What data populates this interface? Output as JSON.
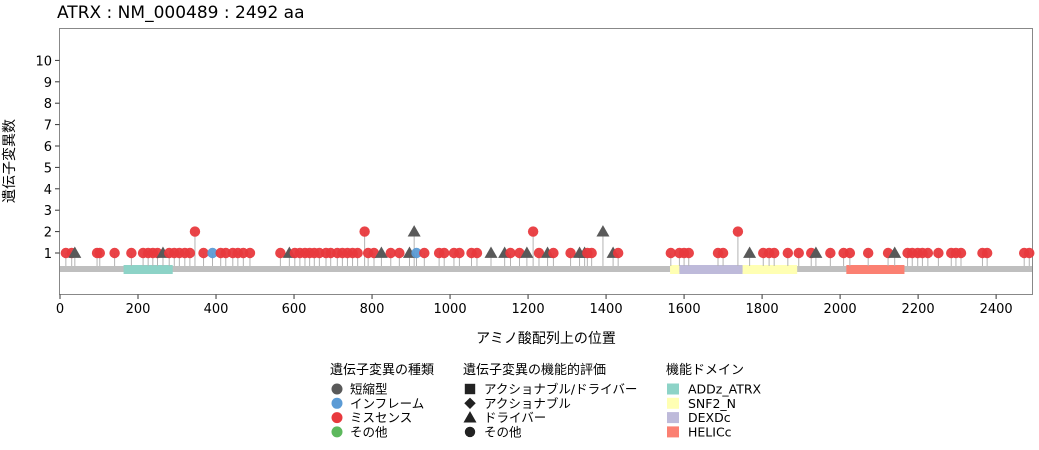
{
  "chart_data": {
    "type": "lollipop",
    "title": "ATRX : NM_000489 : 2492 aa",
    "xlabel": "アミノ酸配列上の位置",
    "ylabel": "遺伝子変異数",
    "xlim": [
      0,
      2492
    ],
    "ylim": [
      0,
      11
    ],
    "x_ticks": [
      0,
      200,
      400,
      600,
      800,
      1000,
      1200,
      1400,
      1600,
      1800,
      2000,
      2200,
      2400
    ],
    "y_ticks": [
      1,
      2,
      3,
      4,
      5,
      6,
      7,
      8,
      9,
      10
    ],
    "protein_length": 2492,
    "domains": [
      {
        "name": "ADDz_ATRX",
        "start": 163,
        "end": 289,
        "color": "#8dd3c7"
      },
      {
        "name": "SNF2_N",
        "start": 1564,
        "end": 1588,
        "color": "#ffffb3"
      },
      {
        "name": "DEXDc",
        "start": 1588,
        "end": 1750,
        "color": "#bebada"
      },
      {
        "name": "SNF2_N",
        "start": 1750,
        "end": 1890,
        "color": "#ffffb3"
      },
      {
        "name": "HELICc",
        "start": 2016,
        "end": 2165,
        "color": "#fb8072"
      }
    ],
    "mutations": [
      {
        "pos": 15,
        "count": 1,
        "type": "missense",
        "evaluation": "other"
      },
      {
        "pos": 30,
        "count": 1,
        "type": "missense",
        "evaluation": "other"
      },
      {
        "pos": 38,
        "count": 1,
        "type": "truncating",
        "evaluation": "driver"
      },
      {
        "pos": 95,
        "count": 1,
        "type": "missense",
        "evaluation": "other"
      },
      {
        "pos": 102,
        "count": 1,
        "type": "missense",
        "evaluation": "other"
      },
      {
        "pos": 140,
        "count": 1,
        "type": "missense",
        "evaluation": "other"
      },
      {
        "pos": 183,
        "count": 1,
        "type": "missense",
        "evaluation": "other"
      },
      {
        "pos": 213,
        "count": 1,
        "type": "missense",
        "evaluation": "other"
      },
      {
        "pos": 226,
        "count": 1,
        "type": "missense",
        "evaluation": "other"
      },
      {
        "pos": 238,
        "count": 1,
        "type": "missense",
        "evaluation": "other"
      },
      {
        "pos": 250,
        "count": 1,
        "type": "missense",
        "evaluation": "other"
      },
      {
        "pos": 264,
        "count": 1,
        "type": "truncating",
        "evaluation": "driver"
      },
      {
        "pos": 280,
        "count": 1,
        "type": "missense",
        "evaluation": "other"
      },
      {
        "pos": 293,
        "count": 1,
        "type": "missense",
        "evaluation": "other"
      },
      {
        "pos": 306,
        "count": 1,
        "type": "missense",
        "evaluation": "other"
      },
      {
        "pos": 320,
        "count": 1,
        "type": "missense",
        "evaluation": "other"
      },
      {
        "pos": 333,
        "count": 1,
        "type": "missense",
        "evaluation": "other"
      },
      {
        "pos": 346,
        "count": 2,
        "type": "missense",
        "evaluation": "other"
      },
      {
        "pos": 368,
        "count": 1,
        "type": "missense",
        "evaluation": "other"
      },
      {
        "pos": 391,
        "count": 1,
        "type": "inframe",
        "evaluation": "other"
      },
      {
        "pos": 412,
        "count": 1,
        "type": "missense",
        "evaluation": "other"
      },
      {
        "pos": 425,
        "count": 1,
        "type": "missense",
        "evaluation": "other"
      },
      {
        "pos": 443,
        "count": 1,
        "type": "missense",
        "evaluation": "other"
      },
      {
        "pos": 456,
        "count": 1,
        "type": "missense",
        "evaluation": "other"
      },
      {
        "pos": 470,
        "count": 1,
        "type": "missense",
        "evaluation": "other"
      },
      {
        "pos": 487,
        "count": 1,
        "type": "missense",
        "evaluation": "other"
      },
      {
        "pos": 565,
        "count": 1,
        "type": "missense",
        "evaluation": "other"
      },
      {
        "pos": 588,
        "count": 1,
        "type": "truncating",
        "evaluation": "driver"
      },
      {
        "pos": 602,
        "count": 1,
        "type": "missense",
        "evaluation": "other"
      },
      {
        "pos": 615,
        "count": 1,
        "type": "missense",
        "evaluation": "other"
      },
      {
        "pos": 628,
        "count": 1,
        "type": "missense",
        "evaluation": "other"
      },
      {
        "pos": 640,
        "count": 1,
        "type": "missense",
        "evaluation": "other"
      },
      {
        "pos": 652,
        "count": 1,
        "type": "missense",
        "evaluation": "other"
      },
      {
        "pos": 665,
        "count": 1,
        "type": "missense",
        "evaluation": "other"
      },
      {
        "pos": 682,
        "count": 1,
        "type": "missense",
        "evaluation": "other"
      },
      {
        "pos": 694,
        "count": 1,
        "type": "missense",
        "evaluation": "other"
      },
      {
        "pos": 711,
        "count": 1,
        "type": "missense",
        "evaluation": "other"
      },
      {
        "pos": 724,
        "count": 1,
        "type": "missense",
        "evaluation": "other"
      },
      {
        "pos": 737,
        "count": 1,
        "type": "missense",
        "evaluation": "other"
      },
      {
        "pos": 750,
        "count": 1,
        "type": "missense",
        "evaluation": "other"
      },
      {
        "pos": 763,
        "count": 1,
        "type": "missense",
        "evaluation": "other"
      },
      {
        "pos": 781,
        "count": 2,
        "type": "missense",
        "evaluation": "other"
      },
      {
        "pos": 790,
        "count": 1,
        "type": "missense",
        "evaluation": "other"
      },
      {
        "pos": 805,
        "count": 1,
        "type": "missense",
        "evaluation": "other"
      },
      {
        "pos": 824,
        "count": 1,
        "type": "truncating",
        "evaluation": "driver"
      },
      {
        "pos": 848,
        "count": 1,
        "type": "missense",
        "evaluation": "other"
      },
      {
        "pos": 870,
        "count": 1,
        "type": "missense",
        "evaluation": "other"
      },
      {
        "pos": 896,
        "count": 1,
        "type": "truncating",
        "evaluation": "driver"
      },
      {
        "pos": 908,
        "count": 2,
        "type": "truncating",
        "evaluation": "driver"
      },
      {
        "pos": 914,
        "count": 1,
        "type": "inframe",
        "evaluation": "other"
      },
      {
        "pos": 934,
        "count": 1,
        "type": "missense",
        "evaluation": "other"
      },
      {
        "pos": 972,
        "count": 1,
        "type": "missense",
        "evaluation": "other"
      },
      {
        "pos": 985,
        "count": 1,
        "type": "missense",
        "evaluation": "other"
      },
      {
        "pos": 1010,
        "count": 1,
        "type": "missense",
        "evaluation": "other"
      },
      {
        "pos": 1024,
        "count": 1,
        "type": "missense",
        "evaluation": "other"
      },
      {
        "pos": 1055,
        "count": 1,
        "type": "missense",
        "evaluation": "other"
      },
      {
        "pos": 1069,
        "count": 1,
        "type": "missense",
        "evaluation": "other"
      },
      {
        "pos": 1105,
        "count": 1,
        "type": "truncating",
        "evaluation": "driver"
      },
      {
        "pos": 1140,
        "count": 1,
        "type": "truncating",
        "evaluation": "driver"
      },
      {
        "pos": 1155,
        "count": 1,
        "type": "missense",
        "evaluation": "other"
      },
      {
        "pos": 1178,
        "count": 1,
        "type": "missense",
        "evaluation": "other"
      },
      {
        "pos": 1197,
        "count": 1,
        "type": "truncating",
        "evaluation": "driver"
      },
      {
        "pos": 1213,
        "count": 2,
        "type": "missense",
        "evaluation": "other"
      },
      {
        "pos": 1228,
        "count": 1,
        "type": "missense",
        "evaluation": "other"
      },
      {
        "pos": 1250,
        "count": 1,
        "type": "truncating",
        "evaluation": "driver"
      },
      {
        "pos": 1265,
        "count": 1,
        "type": "missense",
        "evaluation": "other"
      },
      {
        "pos": 1309,
        "count": 1,
        "type": "missense",
        "evaluation": "other"
      },
      {
        "pos": 1332,
        "count": 1,
        "type": "truncating",
        "evaluation": "driver"
      },
      {
        "pos": 1345,
        "count": 1,
        "type": "truncating",
        "evaluation": "driver"
      },
      {
        "pos": 1352,
        "count": 1,
        "type": "missense",
        "evaluation": "other"
      },
      {
        "pos": 1363,
        "count": 1,
        "type": "missense",
        "evaluation": "other"
      },
      {
        "pos": 1392,
        "count": 2,
        "type": "truncating",
        "evaluation": "driver"
      },
      {
        "pos": 1418,
        "count": 1,
        "type": "truncating",
        "evaluation": "driver"
      },
      {
        "pos": 1431,
        "count": 1,
        "type": "missense",
        "evaluation": "other"
      },
      {
        "pos": 1566,
        "count": 1,
        "type": "missense",
        "evaluation": "other"
      },
      {
        "pos": 1588,
        "count": 1,
        "type": "missense",
        "evaluation": "other"
      },
      {
        "pos": 1600,
        "count": 1,
        "type": "missense",
        "evaluation": "other"
      },
      {
        "pos": 1612,
        "count": 1,
        "type": "missense",
        "evaluation": "other"
      },
      {
        "pos": 1687,
        "count": 1,
        "type": "missense",
        "evaluation": "other"
      },
      {
        "pos": 1700,
        "count": 1,
        "type": "missense",
        "evaluation": "other"
      },
      {
        "pos": 1738,
        "count": 2,
        "type": "missense",
        "evaluation": "other"
      },
      {
        "pos": 1768,
        "count": 1,
        "type": "truncating",
        "evaluation": "driver"
      },
      {
        "pos": 1803,
        "count": 1,
        "type": "missense",
        "evaluation": "other"
      },
      {
        "pos": 1818,
        "count": 1,
        "type": "missense",
        "evaluation": "other"
      },
      {
        "pos": 1831,
        "count": 1,
        "type": "missense",
        "evaluation": "other"
      },
      {
        "pos": 1866,
        "count": 1,
        "type": "missense",
        "evaluation": "other"
      },
      {
        "pos": 1894,
        "count": 1,
        "type": "missense",
        "evaluation": "other"
      },
      {
        "pos": 1926,
        "count": 1,
        "type": "missense",
        "evaluation": "other"
      },
      {
        "pos": 1938,
        "count": 1,
        "type": "truncating",
        "evaluation": "driver"
      },
      {
        "pos": 1975,
        "count": 1,
        "type": "missense",
        "evaluation": "other"
      },
      {
        "pos": 2009,
        "count": 1,
        "type": "missense",
        "evaluation": "other"
      },
      {
        "pos": 2025,
        "count": 1,
        "type": "missense",
        "evaluation": "other"
      },
      {
        "pos": 2072,
        "count": 1,
        "type": "missense",
        "evaluation": "other"
      },
      {
        "pos": 2123,
        "count": 1,
        "type": "missense",
        "evaluation": "other"
      },
      {
        "pos": 2140,
        "count": 1,
        "type": "truncating",
        "evaluation": "driver"
      },
      {
        "pos": 2173,
        "count": 1,
        "type": "missense",
        "evaluation": "other"
      },
      {
        "pos": 2185,
        "count": 1,
        "type": "missense",
        "evaluation": "other"
      },
      {
        "pos": 2199,
        "count": 1,
        "type": "missense",
        "evaluation": "other"
      },
      {
        "pos": 2211,
        "count": 1,
        "type": "missense",
        "evaluation": "other"
      },
      {
        "pos": 2225,
        "count": 1,
        "type": "missense",
        "evaluation": "other"
      },
      {
        "pos": 2252,
        "count": 1,
        "type": "missense",
        "evaluation": "other"
      },
      {
        "pos": 2285,
        "count": 1,
        "type": "missense",
        "evaluation": "other"
      },
      {
        "pos": 2297,
        "count": 1,
        "type": "missense",
        "evaluation": "other"
      },
      {
        "pos": 2310,
        "count": 1,
        "type": "missense",
        "evaluation": "other"
      },
      {
        "pos": 2365,
        "count": 1,
        "type": "missense",
        "evaluation": "other"
      },
      {
        "pos": 2377,
        "count": 1,
        "type": "missense",
        "evaluation": "other"
      },
      {
        "pos": 2472,
        "count": 1,
        "type": "missense",
        "evaluation": "other"
      },
      {
        "pos": 2485,
        "count": 1,
        "type": "missense",
        "evaluation": "other"
      }
    ],
    "legends": {
      "mutation_type": {
        "title": "遺伝子変異の種類",
        "items": [
          {
            "key": "truncating",
            "label": "短縮型",
            "color": "#595959"
          },
          {
            "key": "inframe",
            "label": "インフレーム",
            "color": "#5b9bd5"
          },
          {
            "key": "missense",
            "label": "ミスセンス",
            "color": "#e8393d"
          },
          {
            "key": "other",
            "label": "その他",
            "color": "#5cb85c"
          }
        ]
      },
      "evaluation": {
        "title": "遺伝子変異の機能的評価",
        "items": [
          {
            "key": "actionable_driver",
            "label": "アクショナブル/ドライバー",
            "shape": "square"
          },
          {
            "key": "actionable",
            "label": "アクショナブル",
            "shape": "diamond"
          },
          {
            "key": "driver",
            "label": "ドライバー",
            "shape": "triangle"
          },
          {
            "key": "other",
            "label": "その他",
            "shape": "circle"
          }
        ]
      },
      "domains": {
        "title": "機能ドメイン",
        "items": [
          {
            "label": "ADDz_ATRX",
            "color": "#8dd3c7"
          },
          {
            "label": "SNF2_N",
            "color": "#ffffb3"
          },
          {
            "label": "DEXDc",
            "color": "#bebada"
          },
          {
            "label": "HELICc",
            "color": "#fb8072"
          }
        ]
      }
    },
    "backbone_color": "#bfbfbf",
    "stem_color": "#b3b3b3"
  }
}
